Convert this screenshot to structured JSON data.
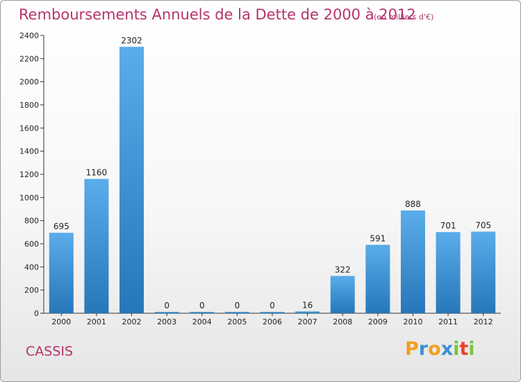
{
  "header": {
    "title": "Remboursements Annuels de la Dette de 2000 à 2012",
    "subtitle": "(en milliers d'€)"
  },
  "footer": {
    "commune": "CASSIS",
    "logo_letters": [
      "P",
      "r",
      "o",
      "x",
      "i",
      "t",
      "i"
    ],
    "logo_colors": [
      "#f0a020",
      "#3b8fd6",
      "#f0a020",
      "#3b8fd6",
      "#7cc242",
      "#e8452c",
      "#7cc242"
    ]
  },
  "chart_data": {
    "type": "bar",
    "categories": [
      "2000",
      "2001",
      "2002",
      "2003",
      "2004",
      "2005",
      "2006",
      "2007",
      "2008",
      "2009",
      "2010",
      "2011",
      "2012"
    ],
    "values": [
      695,
      1160,
      2302,
      0,
      0,
      0,
      0,
      16,
      322,
      591,
      888,
      701,
      705
    ],
    "title": "Remboursements Annuels de la Dette de 2000 à 2012",
    "subtitle": "(en milliers d'€)",
    "xlabel": "",
    "ylabel": "",
    "ylim": [
      0,
      2400
    ],
    "yticks": [
      0,
      200,
      400,
      600,
      800,
      1000,
      1200,
      1400,
      1600,
      1800,
      2000,
      2200,
      2400
    ],
    "grid": false,
    "bar_color_top": "#5aacea",
    "bar_color_bottom": "#2677b9"
  }
}
